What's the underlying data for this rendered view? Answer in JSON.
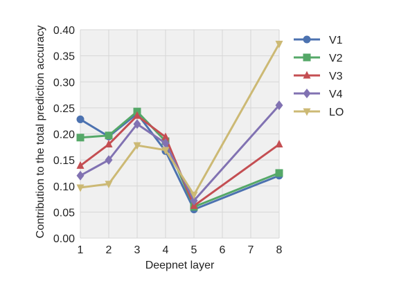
{
  "chart_data": {
    "type": "line",
    "title": "",
    "xlabel": "Deepnet layer",
    "ylabel": "Contribution to the total prediction accuracy",
    "x": [
      1,
      2,
      3,
      4,
      5,
      8
    ],
    "xticks": [
      "1",
      "2",
      "3",
      "4",
      "5",
      "6",
      "7",
      "8"
    ],
    "xlim": [
      1,
      8
    ],
    "ylim": [
      0,
      0.4
    ],
    "yticks": [
      "0.00",
      "0.05",
      "0.10",
      "0.15",
      "0.20",
      "0.25",
      "0.30",
      "0.35",
      "0.40"
    ],
    "grid": true,
    "legend_position": "outside-right-top",
    "series": [
      {
        "name": "V1",
        "color": "#4c72b0",
        "marker": "circle",
        "values": [
          0.228,
          0.195,
          0.239,
          0.167,
          0.055,
          0.12
        ]
      },
      {
        "name": "V2",
        "color": "#55a868",
        "marker": "square",
        "values": [
          0.193,
          0.197,
          0.243,
          0.186,
          0.06,
          0.125
        ]
      },
      {
        "name": "V3",
        "color": "#c44e52",
        "marker": "triangle-up",
        "values": [
          0.139,
          0.18,
          0.235,
          0.194,
          0.062,
          0.18
        ]
      },
      {
        "name": "V4",
        "color": "#8172b2",
        "marker": "diamond",
        "values": [
          0.12,
          0.15,
          0.219,
          0.182,
          0.072,
          0.255
        ]
      },
      {
        "name": "LO",
        "color": "#ccb974",
        "marker": "triangle-down",
        "values": [
          0.097,
          0.104,
          0.178,
          0.169,
          0.083,
          0.373
        ]
      }
    ]
  }
}
